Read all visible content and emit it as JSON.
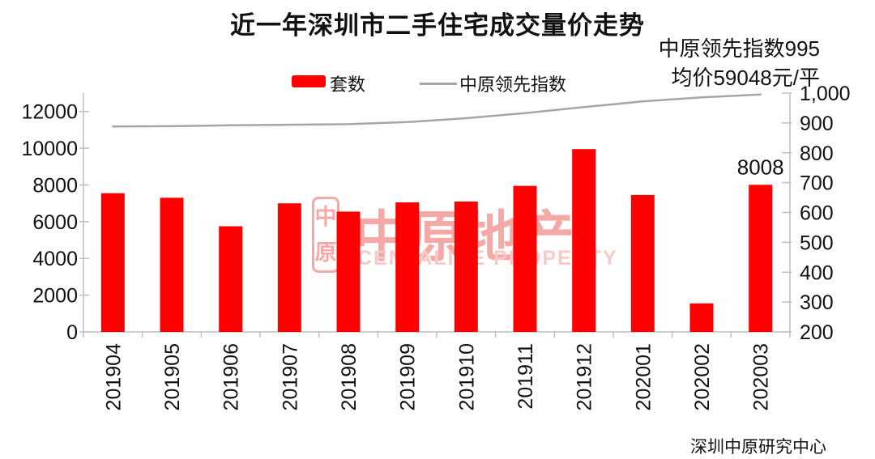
{
  "title": "近一年深圳市二手住宅成交量价走势",
  "legend": {
    "bar_label": "套数",
    "line_label": "中原领先指数"
  },
  "annotation": {
    "line1": "中原领先指数995",
    "line2": "均价59048元/平"
  },
  "source": "深圳中原研究中心",
  "watermark": {
    "seal_char_top": "中",
    "seal_char_bottom": "原",
    "brand": "中原地产",
    "brand_en": "CENTALINE PROPERTY"
  },
  "colors": {
    "bar": "#fe0000",
    "line": "#a6a6a6",
    "axis": "#bfbfbf",
    "text": "#111111",
    "watermark": "#f5a9a6",
    "watermark_en": "#f8c9c6"
  },
  "chart_data": {
    "type": "bar",
    "title": "近一年深圳市二手住宅成交量价走势",
    "categories": [
      "201904",
      "201905",
      "201906",
      "201907",
      "201908",
      "201909",
      "201910",
      "201911",
      "201912",
      "202001",
      "202002",
      "202003"
    ],
    "series": [
      {
        "name": "套数",
        "type": "bar",
        "axis": "left",
        "values": [
          7550,
          7300,
          5750,
          7000,
          6550,
          7050,
          7100,
          7950,
          9950,
          7450,
          1550,
          8008
        ]
      },
      {
        "name": "中原领先指数",
        "type": "line",
        "axis": "right",
        "values": [
          888,
          889,
          892,
          894,
          896,
          903,
          916,
          933,
          953,
          972,
          986,
          995
        ]
      }
    ],
    "left_axis": {
      "min": 0,
      "max": 13000,
      "ticks": [
        0,
        2000,
        4000,
        6000,
        8000,
        10000,
        12000
      ],
      "tick_labels": [
        "0",
        "2000",
        "4000",
        "6000",
        "8000",
        "10000",
        "12000"
      ]
    },
    "right_axis": {
      "min": 200,
      "max": 1000,
      "ticks": [
        200,
        300,
        400,
        500,
        600,
        700,
        800,
        900,
        1000
      ],
      "tick_labels": [
        "200",
        "300",
        "400",
        "500",
        "600",
        "700",
        "800",
        "900",
        "1,000"
      ]
    },
    "data_label": {
      "category": "202003",
      "series": "套数",
      "text": "8008"
    },
    "legend_position": "top",
    "grid": false
  }
}
